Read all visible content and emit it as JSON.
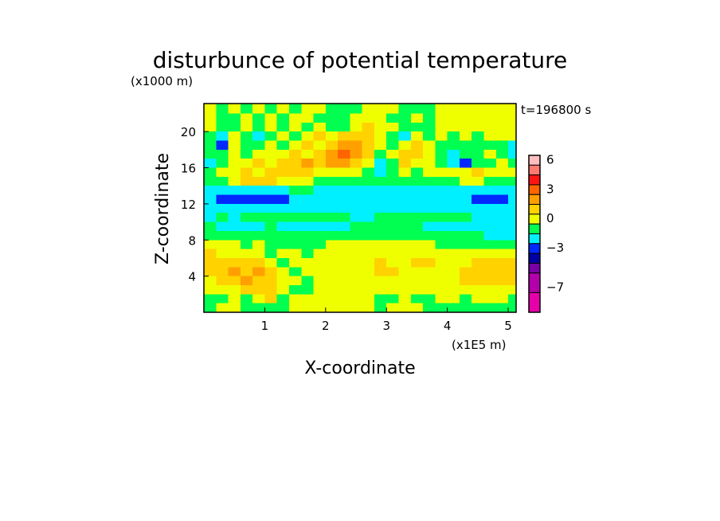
{
  "chart_data": {
    "type": "heatmap",
    "title": "disturbunce of potential temperature",
    "xlabel": "X-coordinate",
    "ylabel": "Z-coordinate",
    "x_unit": "(x1E5 m)",
    "y_unit": "(x1000 m)",
    "time_label": "t=196800 s",
    "xlim": [
      0,
      5.13
    ],
    "ylim": [
      0,
      23.1
    ],
    "xticks": [
      1,
      2,
      3,
      4,
      5
    ],
    "yticks": [
      4,
      8,
      12,
      16,
      20
    ],
    "grid_x": [
      0.1,
      0.3,
      0.5,
      0.7,
      0.9,
      1.1,
      1.3,
      1.5,
      1.7,
      1.9,
      2.1,
      2.3,
      2.5,
      2.7,
      2.9,
      3.1,
      3.3,
      3.5,
      3.7,
      3.9,
      4.1,
      4.3,
      4.5,
      4.7,
      4.9,
      5.1
    ],
    "grid_z": [
      22.5,
      21.5,
      20.5,
      19.5,
      18.5,
      17.5,
      16.5,
      15.5,
      14.5,
      13.5,
      12.5,
      11.5,
      10.5,
      9.5,
      8.5,
      7.5,
      6.5,
      5.5,
      4.5,
      3.5,
      2.5,
      1.5,
      0.5
    ],
    "values": [
      [
        0.5,
        -0.5,
        0.5,
        -0.5,
        0.5,
        -0.5,
        0.5,
        -0.5,
        0.5,
        0.5,
        -0.5,
        -0.5,
        -0.5,
        0.5,
        0.5,
        0.5,
        -0.5,
        -0.5,
        -0.5,
        0.5,
        0.5,
        0.5,
        0.5,
        0.5,
        0.5,
        0.5
      ],
      [
        0.5,
        -0.5,
        -0.5,
        0.5,
        -0.5,
        0.5,
        -0.5,
        0.5,
        0.5,
        -0.5,
        -0.5,
        -0.5,
        0.5,
        0.5,
        0.5,
        -0.5,
        -0.5,
        0.5,
        -0.5,
        0.5,
        0.5,
        0.5,
        0.5,
        0.5,
        0.5,
        0.5
      ],
      [
        0.5,
        -0.5,
        -0.5,
        0.5,
        -0.5,
        0.5,
        -0.5,
        0.5,
        -0.5,
        0.5,
        -0.5,
        -0.5,
        0.5,
        1.5,
        0.5,
        0.5,
        -0.5,
        -0.5,
        -0.5,
        0.5,
        0.5,
        0.5,
        0.5,
        0.5,
        0.5,
        0.5
      ],
      [
        -0.5,
        -1.5,
        0.5,
        -0.5,
        -1.5,
        -0.5,
        0.5,
        -0.5,
        0.5,
        1.5,
        0.5,
        1.5,
        1.5,
        1.5,
        0.5,
        -0.5,
        -1.5,
        0.5,
        -0.5,
        0.5,
        -0.5,
        0.5,
        -0.5,
        0.5,
        0.5,
        0.5
      ],
      [
        -0.5,
        -2.5,
        0.5,
        -0.5,
        -0.5,
        0.5,
        -0.5,
        0.5,
        1.5,
        0.5,
        1.5,
        2.5,
        2.5,
        1.5,
        0.5,
        -0.5,
        0.5,
        1.5,
        0.5,
        -0.5,
        -0.5,
        -0.5,
        -0.5,
        -0.5,
        -0.5,
        -1.5
      ],
      [
        -0.5,
        -0.5,
        0.5,
        -0.5,
        0.5,
        0.5,
        0.5,
        1.5,
        0.5,
        1.5,
        2.5,
        3.5,
        2.5,
        1.5,
        -0.5,
        0.5,
        1.5,
        1.5,
        0.5,
        -0.5,
        -1.5,
        -0.5,
        -0.5,
        0.5,
        -0.5,
        -1.5
      ],
      [
        -1.5,
        -0.5,
        0.5,
        0.5,
        1.5,
        0.5,
        1.5,
        1.5,
        2.5,
        1.5,
        2.5,
        2.5,
        1.5,
        0.5,
        -1.5,
        -0.5,
        1.5,
        0.5,
        0.5,
        -0.5,
        -1.5,
        -2.5,
        -0.5,
        -0.5,
        0.5,
        -0.5
      ],
      [
        -0.5,
        0.5,
        0.5,
        1.5,
        0.5,
        1.5,
        1.5,
        1.5,
        1.5,
        0.5,
        0.5,
        0.5,
        0.5,
        -0.5,
        -1.5,
        -0.5,
        0.5,
        -0.5,
        0.5,
        0.5,
        0.5,
        0.5,
        1.5,
        0.5,
        0.5,
        0.5
      ],
      [
        -0.5,
        -0.5,
        0.5,
        1.5,
        1.5,
        1.5,
        0.5,
        0.5,
        0.5,
        -0.5,
        -0.5,
        -0.5,
        -0.5,
        -0.5,
        -0.5,
        -0.5,
        -0.5,
        -0.5,
        -0.5,
        -0.5,
        -0.5,
        0.5,
        0.5,
        -0.5,
        -0.5,
        -0.5
      ],
      [
        -1.5,
        -1.5,
        -1.5,
        -1.5,
        -1.5,
        -1.5,
        -1.5,
        -0.5,
        -0.5,
        -1.5,
        -1.5,
        -1.5,
        -1.5,
        -1.5,
        -1.5,
        -1.5,
        -1.5,
        -1.5,
        -1.5,
        -1.5,
        -1.5,
        -1.5,
        -1.5,
        -1.5,
        -1.5,
        -1.5
      ],
      [
        -1.5,
        -2.5,
        -2.5,
        -2.5,
        -2.5,
        -2.5,
        -2.5,
        -1.5,
        -1.5,
        -1.5,
        -1.5,
        -1.5,
        -1.5,
        -1.5,
        -1.5,
        -1.5,
        -1.5,
        -1.5,
        -1.5,
        -1.5,
        -1.5,
        -1.5,
        -2.5,
        -2.5,
        -2.5,
        -1.5
      ],
      [
        -1.5,
        -1.5,
        -1.5,
        -1.5,
        -1.5,
        -1.5,
        -1.5,
        -1.5,
        -1.5,
        -1.5,
        -1.5,
        -1.5,
        -1.5,
        -1.5,
        -1.5,
        -1.5,
        -1.5,
        -1.5,
        -1.5,
        -1.5,
        -1.5,
        -1.5,
        -1.5,
        -1.5,
        -1.5,
        -1.5
      ],
      [
        -1.5,
        -0.5,
        -1.5,
        -0.5,
        -0.5,
        -0.5,
        -0.5,
        -0.5,
        -0.5,
        -0.5,
        -0.5,
        -0.5,
        -1.5,
        -1.5,
        -0.5,
        -0.5,
        -0.5,
        -0.5,
        -0.5,
        -0.5,
        -0.5,
        -0.5,
        -1.5,
        -1.5,
        -1.5,
        -1.5
      ],
      [
        -0.5,
        -1.5,
        -1.5,
        -1.5,
        -1.5,
        -0.5,
        -1.5,
        -1.5,
        -1.5,
        -1.5,
        -1.5,
        -1.5,
        -0.5,
        -0.5,
        -0.5,
        -0.5,
        -0.5,
        -0.5,
        -1.5,
        -1.5,
        -1.5,
        -1.5,
        -1.5,
        -1.5,
        -1.5,
        -1.5
      ],
      [
        -0.5,
        -0.5,
        -0.5,
        -0.5,
        -0.5,
        -0.5,
        -0.5,
        -0.5,
        -0.5,
        -0.5,
        -0.5,
        -0.5,
        -0.5,
        -0.5,
        -0.5,
        -0.5,
        -0.5,
        -0.5,
        -0.5,
        -0.5,
        -0.5,
        -0.5,
        -0.5,
        -1.5,
        -1.5,
        -1.5
      ],
      [
        0.5,
        0.5,
        0.5,
        -0.5,
        0.5,
        -0.5,
        -0.5,
        -0.5,
        -0.5,
        -0.5,
        0.5,
        0.5,
        0.5,
        0.5,
        0.5,
        0.5,
        0.5,
        0.5,
        0.5,
        -0.5,
        -0.5,
        -0.5,
        -0.5,
        -0.5,
        -0.5,
        -0.5
      ],
      [
        1.5,
        0.5,
        0.5,
        0.5,
        0.5,
        -0.5,
        0.5,
        0.5,
        -0.5,
        0.5,
        0.5,
        0.5,
        0.5,
        0.5,
        0.5,
        0.5,
        0.5,
        0.5,
        0.5,
        0.5,
        0.5,
        0.5,
        0.5,
        0.5,
        0.5,
        0.5
      ],
      [
        1.5,
        1.5,
        1.5,
        1.5,
        1.5,
        0.5,
        -0.5,
        0.5,
        0.5,
        0.5,
        0.5,
        0.5,
        0.5,
        0.5,
        1.5,
        0.5,
        0.5,
        1.5,
        1.5,
        0.5,
        0.5,
        0.5,
        1.5,
        1.5,
        1.5,
        1.5
      ],
      [
        1.5,
        1.5,
        2.5,
        1.5,
        2.5,
        1.5,
        0.5,
        -0.5,
        0.5,
        0.5,
        0.5,
        0.5,
        0.5,
        0.5,
        1.5,
        1.5,
        0.5,
        0.5,
        0.5,
        0.5,
        0.5,
        1.5,
        1.5,
        1.5,
        1.5,
        1.5
      ],
      [
        0.5,
        1.5,
        1.5,
        2.5,
        1.5,
        1.5,
        0.5,
        0.5,
        -0.5,
        0.5,
        0.5,
        0.5,
        0.5,
        0.5,
        0.5,
        0.5,
        0.5,
        0.5,
        0.5,
        0.5,
        0.5,
        1.5,
        1.5,
        1.5,
        1.5,
        1.5
      ],
      [
        0.5,
        0.5,
        0.5,
        1.5,
        1.5,
        1.5,
        0.5,
        -0.5,
        -0.5,
        0.5,
        0.5,
        0.5,
        0.5,
        0.5,
        0.5,
        0.5,
        0.5,
        0.5,
        0.5,
        0.5,
        0.5,
        0.5,
        0.5,
        0.5,
        0.5,
        0.5
      ],
      [
        -0.5,
        -0.5,
        0.5,
        -0.5,
        0.5,
        1.5,
        -0.5,
        0.5,
        0.5,
        0.5,
        0.5,
        0.5,
        0.5,
        0.5,
        -0.5,
        -0.5,
        0.5,
        -0.5,
        -0.5,
        0.5,
        0.5,
        -0.5,
        0.5,
        0.5,
        0.5,
        -0.5
      ],
      [
        -0.5,
        0.5,
        0.5,
        -0.5,
        -0.5,
        -0.5,
        -0.5,
        0.5,
        0.5,
        0.5,
        0.5,
        0.5,
        0.5,
        0.5,
        -0.5,
        0.5,
        0.5,
        0.5,
        -0.5,
        -0.5,
        -0.5,
        -0.5,
        -0.5,
        -0.5,
        -0.5,
        -0.5
      ]
    ],
    "colorbar": {
      "bounds": [
        7,
        6,
        5,
        4,
        3,
        2,
        1,
        0,
        -1,
        -2,
        -3,
        -4,
        -5,
        -7,
        -9
      ],
      "colors": [
        "#ffbfbf",
        "#ff7a70",
        "#ff1414",
        "#ff6400",
        "#ff9f00",
        "#ffd200",
        "#f0ff00",
        "#00ff50",
        "#00f0ff",
        "#0028ff",
        "#0000a5",
        "#7800a5",
        "#b400aa",
        "#e600aa"
      ],
      "labels": [
        {
          "value": 6,
          "text": "6"
        },
        {
          "value": 3,
          "text": "3"
        },
        {
          "value": 0,
          "text": "0"
        },
        {
          "value": -3,
          "text": "−3"
        },
        {
          "value": -7,
          "text": "−7"
        }
      ]
    }
  }
}
